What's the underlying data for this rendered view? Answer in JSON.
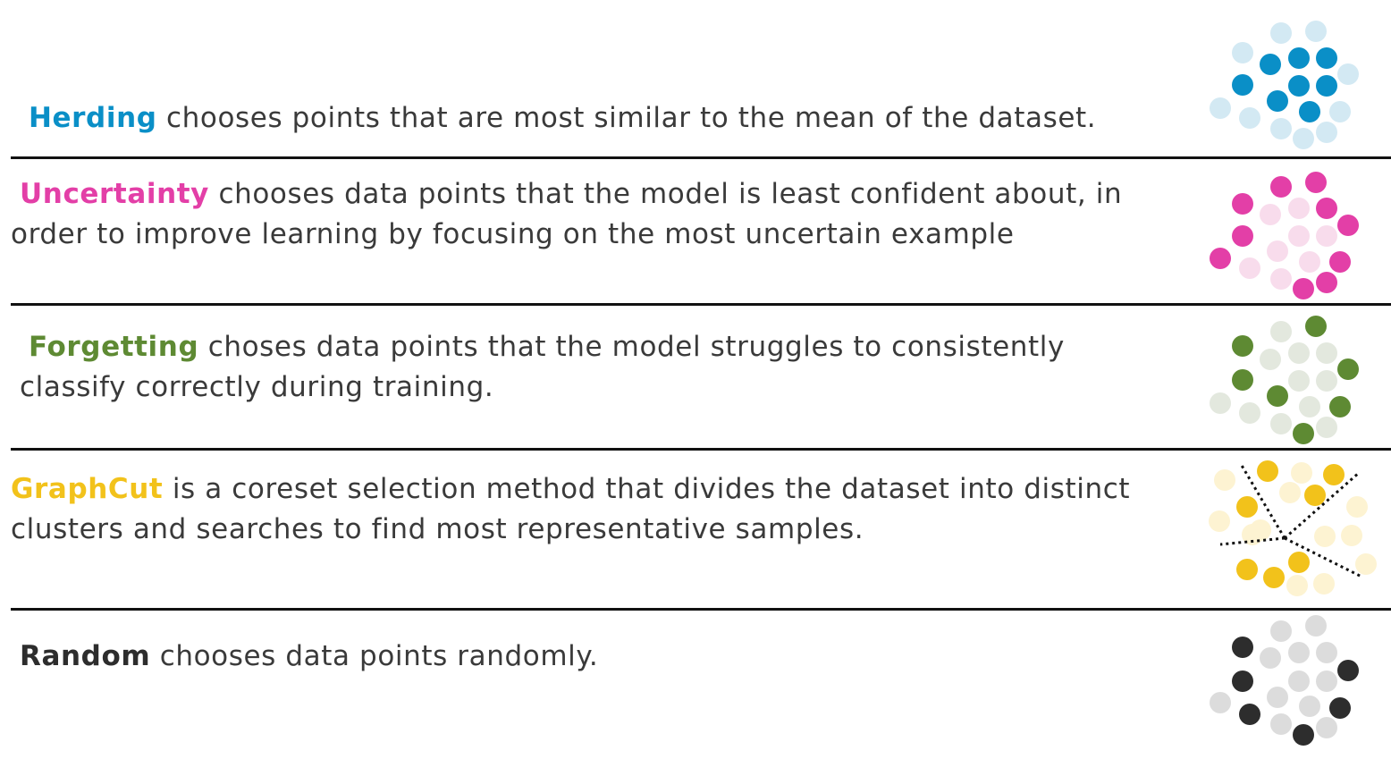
{
  "methods": [
    {
      "term": "Herding",
      "description": " chooses points that are most similar to the mean of the dataset.",
      "color": "#0a8fc7",
      "light": "#d3e9f3"
    },
    {
      "term": "Uncertainty",
      "description": " chooses data points that the model is least confident about, in order to improve learning by focusing on the most uncertain example",
      "color": "#e33fa7",
      "light": "#f8dcec"
    },
    {
      "term": "Forgetting",
      "description": " choses data points that the model struggles to consistently classify correctly during training.",
      "color": "#5e8a33",
      "light": "#e3e8de"
    },
    {
      "term": "GraphCut",
      "description": " is a coreset selection method that divides the dataset into distinct clusters and searches to find most representative samples.",
      "color": "#f2c21b",
      "light": "#fdf3d2"
    },
    {
      "term": "Random",
      "description": " chooses data points randomly.",
      "color": "#2d2d2d",
      "light": "#dcdcdc"
    }
  ]
}
